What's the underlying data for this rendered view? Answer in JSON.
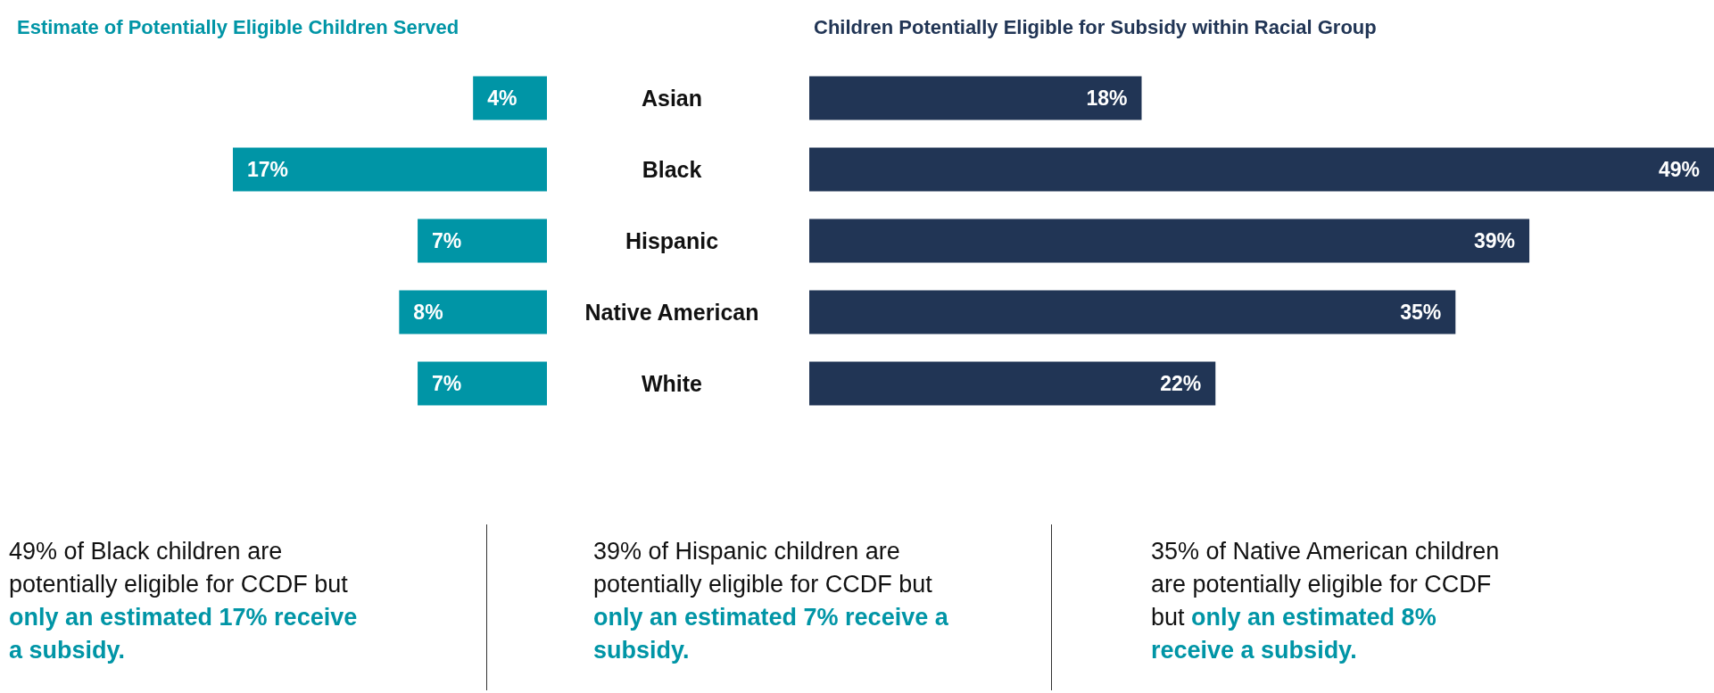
{
  "chart_data": [
    {
      "type": "bar",
      "orientation": "horizontal",
      "title": "Estimate of Potentially Eligible Children Served",
      "categories": [
        "Asian",
        "Black",
        "Hispanic",
        "Native American",
        "White"
      ],
      "values": [
        4,
        17,
        7,
        8,
        7
      ],
      "value_labels": [
        "4%",
        "17%",
        "7%",
        "8%",
        "7%"
      ],
      "color": "#0095a6",
      "annotations": [
        "49% of Black children are potentially eligible for CCDF but",
        "only an estimated 17% receive a subsidy.",
        "39% of Hispanic children are potentially eligible for CCDF but",
        "only an estimated 7% receive a subsidy.",
        "35% of Native American children are potentially eligible for CCDF but",
        "only an estimated 8% receive a subsidy."
      ]
    },
    {
      "type": "bar",
      "orientation": "horizontal",
      "title": "Children Potentially Eligible for Subsidy within Racial Group",
      "categories": [
        null,
        null,
        null,
        null,
        null
      ],
      "values": [
        18,
        49,
        39,
        35,
        22
      ],
      "value_labels": [
        "18%",
        "49%",
        "39%",
        "35%",
        "22%"
      ],
      "color": "#213555"
    }
  ]
}
